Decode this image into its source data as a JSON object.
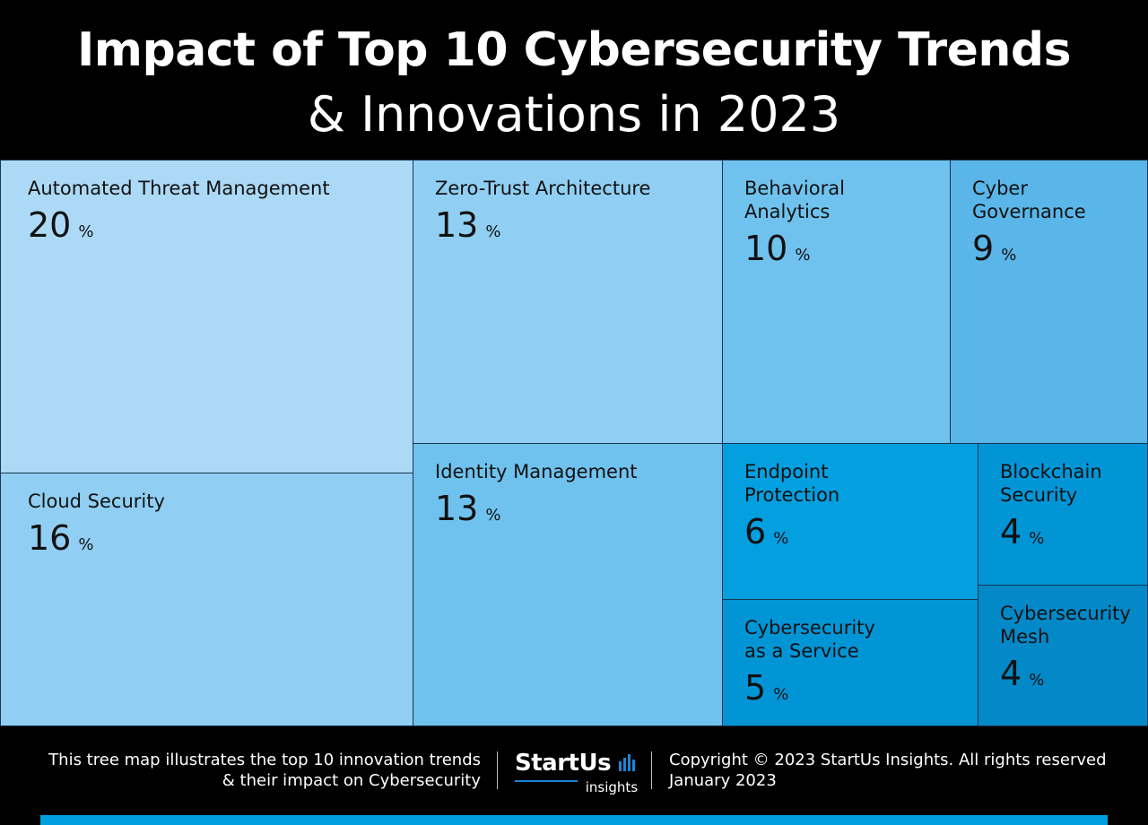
{
  "header": {
    "title": "Impact of Top 10 Cybersecurity Trends",
    "subtitle": "& Innovations in 2023"
  },
  "chart_data": {
    "type": "treemap",
    "title": "Impact of Top 10 Cybersecurity Trends",
    "subtitle": "& Innovations in 2023",
    "unit": "%",
    "categories": [
      "Automated Threat Management",
      "Cloud Security",
      "Zero-Trust Architecture",
      "Identity Management",
      "Behavioral Analytics",
      "Cyber Governance",
      "Endpoint Protection",
      "Cybersecurity as a Service",
      "Blockchain Security",
      "Cybersecurity Mesh"
    ],
    "values": [
      20,
      16,
      13,
      13,
      10,
      9,
      6,
      5,
      4,
      4
    ],
    "colors": [
      "#acd9f6",
      "#90cff3",
      "#90cff3",
      "#70c2ee",
      "#70c2ee",
      "#5ab5e8",
      "#049fdf",
      "#0295d6",
      "#0295d6",
      "#0389c8"
    ]
  },
  "cells": [
    {
      "label": "Automated Threat Management",
      "value": "20",
      "pct": "%"
    },
    {
      "label": "Cloud Security",
      "value": "16",
      "pct": "%"
    },
    {
      "label": "Zero-Trust Architecture",
      "value": "13",
      "pct": "%"
    },
    {
      "label": "Identity Management",
      "value": "13",
      "pct": "%"
    },
    {
      "label": "Behavioral\nAnalytics",
      "value": "10",
      "pct": "%"
    },
    {
      "label": "Cyber\nGovernance",
      "value": "9",
      "pct": "%"
    },
    {
      "label": "Endpoint\nProtection",
      "value": "6",
      "pct": "%"
    },
    {
      "label": "Cybersecurity\nas a Service",
      "value": "5",
      "pct": "%"
    },
    {
      "label": "Blockchain\nSecurity",
      "value": "4",
      "pct": "%"
    },
    {
      "label": "Cybersecurity\nMesh",
      "value": "4",
      "pct": "%"
    }
  ],
  "footer": {
    "note": "This tree map illustrates the top 10 innovation trends\n& their impact on Cybersecurity",
    "logo_word": "StartUs",
    "logo_sub": "insights",
    "copyright": "Copyright © 2023 StartUs Insights. All rights reserved",
    "date": "January 2023"
  }
}
